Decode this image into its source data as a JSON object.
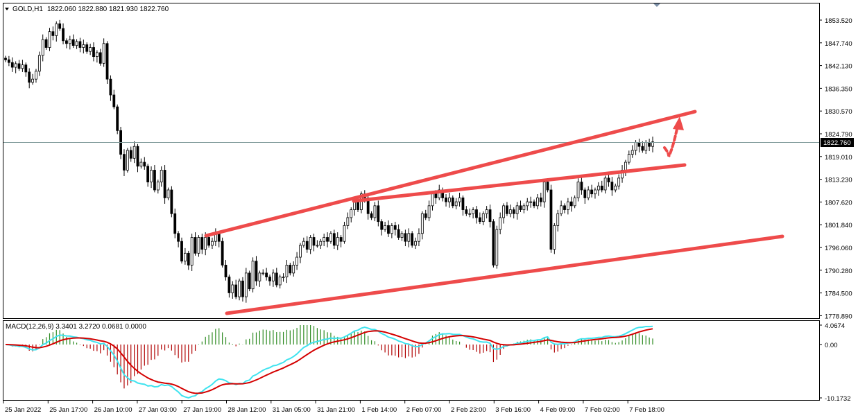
{
  "header": {
    "symbol_label": "GOLD,H1",
    "ohlc_text": "1822.060 1822.880 1821.930 1822.760"
  },
  "price_axis": {
    "ticks": [
      "1853.520",
      "1847.740",
      "1842.130",
      "1836.350",
      "1830.570",
      "1824.790",
      "1819.010",
      "1813.230",
      "1807.620",
      "1801.840",
      "1796.060",
      "1790.280",
      "1784.500",
      "1778.890"
    ],
    "current_price_label": "1822.760"
  },
  "time_axis": {
    "labels": [
      "25 Jan 2022",
      "25 Jan 17:00",
      "26 Jan 10:00",
      "27 Jan 03:00",
      "27 Jan 19:00",
      "28 Jan 12:00",
      "31 Jan 05:00",
      "31 Jan 21:00",
      "1 Feb 14:00",
      "2 Feb 07:00",
      "2 Feb 23:00",
      "3 Feb 16:00",
      "4 Feb 09:00",
      "7 Feb 02:00",
      "7 Feb 18:00"
    ]
  },
  "macd": {
    "label": "MACD(12,26,9) 3.3401 3.2720 0.0681 0.0000",
    "ticks": [
      "4.0674",
      "0.00",
      "-10.1732"
    ]
  },
  "colors": {
    "bull_candle": "#ffffff",
    "bear_candle": "#000000",
    "trendline": "#ee4b4b",
    "macd_line": "#3fe3ef",
    "signal_line": "#d40000",
    "hist_positive": "#2e8b22",
    "hist_negative": "#b00000",
    "current_price_box": "#000000"
  },
  "chart_data": {
    "type": "candlestick",
    "symbol": "GOLD",
    "timeframe": "H1",
    "ylim": [
      1778.89,
      1855.5
    ],
    "current_price": 1822.76,
    "closes": [
      1843.5,
      1842.8,
      1841.6,
      1842.5,
      1841.3,
      1842.2,
      1840.4,
      1837.8,
      1838.6,
      1840.6,
      1844.6,
      1848.6,
      1846.6,
      1850.6,
      1849.6,
      1852.6,
      1851.4,
      1848.3,
      1847.6,
      1848.6,
      1847.1,
      1848.1,
      1846.6,
      1847.3,
      1845.6,
      1846.6,
      1844.3,
      1845.3,
      1842.6,
      1847.6,
      1838.6,
      1834.6,
      1831.6,
      1825.6,
      1819.6,
      1815.6,
      1820.6,
      1818.6,
      1821.6,
      1816.6,
      1817.6,
      1816.6,
      1812.6,
      1815.6,
      1810.6,
      1812.6,
      1815.6,
      1808.6,
      1810.6,
      1804.6,
      1799.6,
      1797.6,
      1792.6,
      1794.6,
      1791.6,
      1798.6,
      1794.6,
      1798.6,
      1795.6,
      1798.6,
      1796.6,
      1797.6,
      1799.6,
      1797.6,
      1791.6,
      1788.6,
      1784.6,
      1786.6,
      1783.6,
      1787.6,
      1783.6,
      1789.6,
      1785.6,
      1792.6,
      1787.6,
      1789.6,
      1789.6,
      1788.6,
      1787.6,
      1789.6,
      1786.6,
      1788.6,
      1788.6,
      1791.6,
      1789.6,
      1791.6,
      1793.6,
      1796.6,
      1797.6,
      1795.6,
      1798.6,
      1796.6,
      1796.6,
      1797.6,
      1798.6,
      1797.6,
      1799.6,
      1796.6,
      1798.6,
      1797.6,
      1801.6,
      1803.6,
      1805.6,
      1807.6,
      1805.6,
      1809.6,
      1808.6,
      1804.6,
      1803.6,
      1806.6,
      1802.6,
      1800.6,
      1801.6,
      1799.6,
      1801.6,
      1800.6,
      1798.6,
      1799.6,
      1797.6,
      1799.6,
      1796.6,
      1797.6,
      1799.6,
      1804.6,
      1803.6,
      1806.6,
      1809.6,
      1808.6,
      1810.6,
      1808.6,
      1807.6,
      1808.6,
      1806.6,
      1807.6,
      1808.6,
      1805.6,
      1804.6,
      1804.6,
      1805.6,
      1803.6,
      1802.6,
      1804.6,
      1805.6,
      1802.6,
      1791.6,
      1800.6,
      1803.6,
      1806.6,
      1804.6,
      1805.6,
      1804.6,
      1806.6,
      1805.6,
      1806.6,
      1807.6,
      1807.6,
      1806.6,
      1808.6,
      1807.6,
      1812.6,
      1810.6,
      1795.6,
      1801.6,
      1804.6,
      1806.6,
      1805.6,
      1807.6,
      1806.6,
      1808.6,
      1812.6,
      1810.6,
      1808.6,
      1810.6,
      1809.6,
      1810.6,
      1811.6,
      1810.6,
      1813.6,
      1812.6,
      1810.6,
      1811.6,
      1813.6,
      1815.6,
      1817.6,
      1819.6,
      1820.6,
      1822.6,
      1821.6,
      1820.6,
      1822.6,
      1821.6,
      1822.76
    ]
  }
}
